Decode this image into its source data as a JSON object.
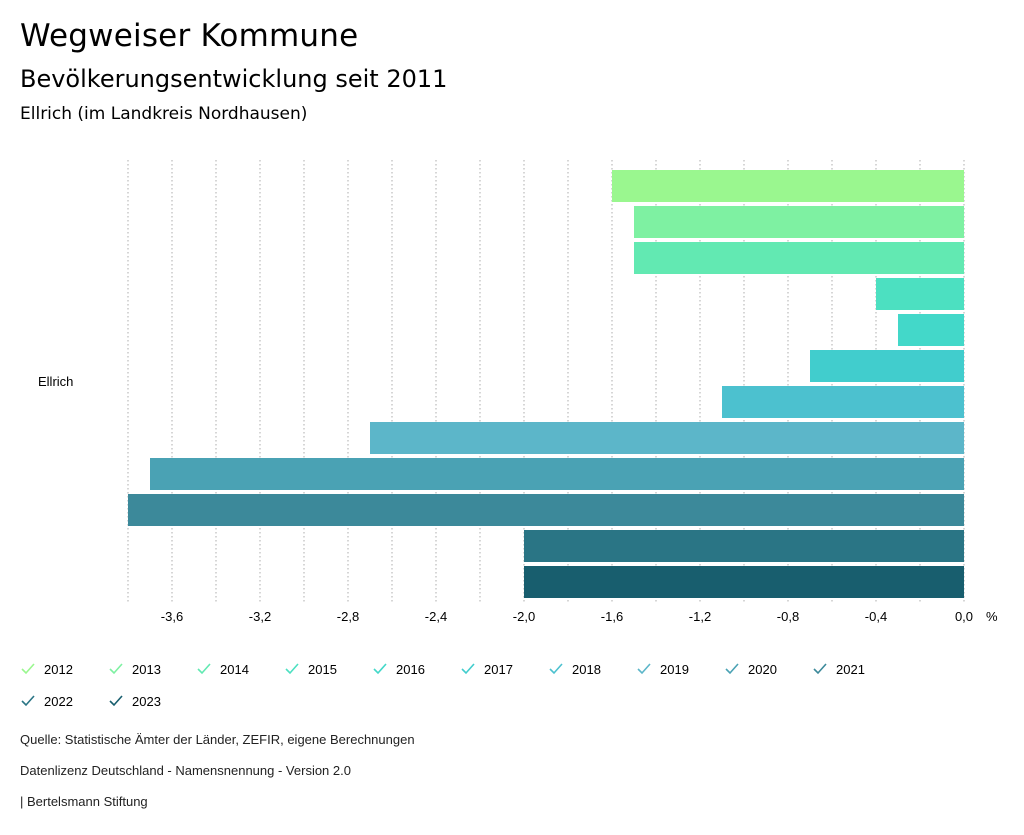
{
  "header": {
    "title": "Wegweiser Kommune",
    "subtitle": "Bevölkerungsentwicklung seit 2011",
    "region": "Ellrich (im Landkreis Nordhausen)"
  },
  "chart_data": {
    "type": "bar",
    "orientation": "horizontal",
    "category": "Ellrich",
    "unit": "%",
    "xlim": [
      -3.8,
      0.0
    ],
    "ticks": [
      "-3,6",
      "-3,2",
      "-2,8",
      "-2,4",
      "-2,0",
      "-1,6",
      "-1,2",
      "-0,8",
      "-0,4",
      "0,0"
    ],
    "tick_values": [
      -3.6,
      -3.2,
      -2.8,
      -2.4,
      -2.0,
      -1.6,
      -1.2,
      -0.8,
      -0.4,
      0.0
    ],
    "series": [
      {
        "name": "2012",
        "value": -1.6,
        "color": "#9af78f"
      },
      {
        "name": "2013",
        "value": -1.5,
        "color": "#7ef1a2"
      },
      {
        "name": "2014",
        "value": -1.5,
        "color": "#62e9b2"
      },
      {
        "name": "2015",
        "value": -0.4,
        "color": "#4ce0c1"
      },
      {
        "name": "2016",
        "value": -0.3,
        "color": "#43d8c9"
      },
      {
        "name": "2017",
        "value": -0.7,
        "color": "#41cdcd"
      },
      {
        "name": "2018",
        "value": -1.1,
        "color": "#4cc1cf"
      },
      {
        "name": "2019",
        "value": -2.7,
        "color": "#5cb6c9"
      },
      {
        "name": "2020",
        "value": -3.7,
        "color": "#4aa2b4"
      },
      {
        "name": "2021",
        "value": -3.8,
        "color": "#3c899a"
      },
      {
        "name": "2022",
        "value": -2.0,
        "color": "#2a7585"
      },
      {
        "name": "2023",
        "value": -2.0,
        "color": "#185e6e"
      }
    ]
  },
  "footer": {
    "source": "Quelle: Statistische Ämter der Länder, ZEFIR, eigene Berechnungen",
    "license": "Datenlizenz Deutschland - Namensnennung - Version 2.0",
    "publisher": "| Bertelsmann Stiftung"
  }
}
